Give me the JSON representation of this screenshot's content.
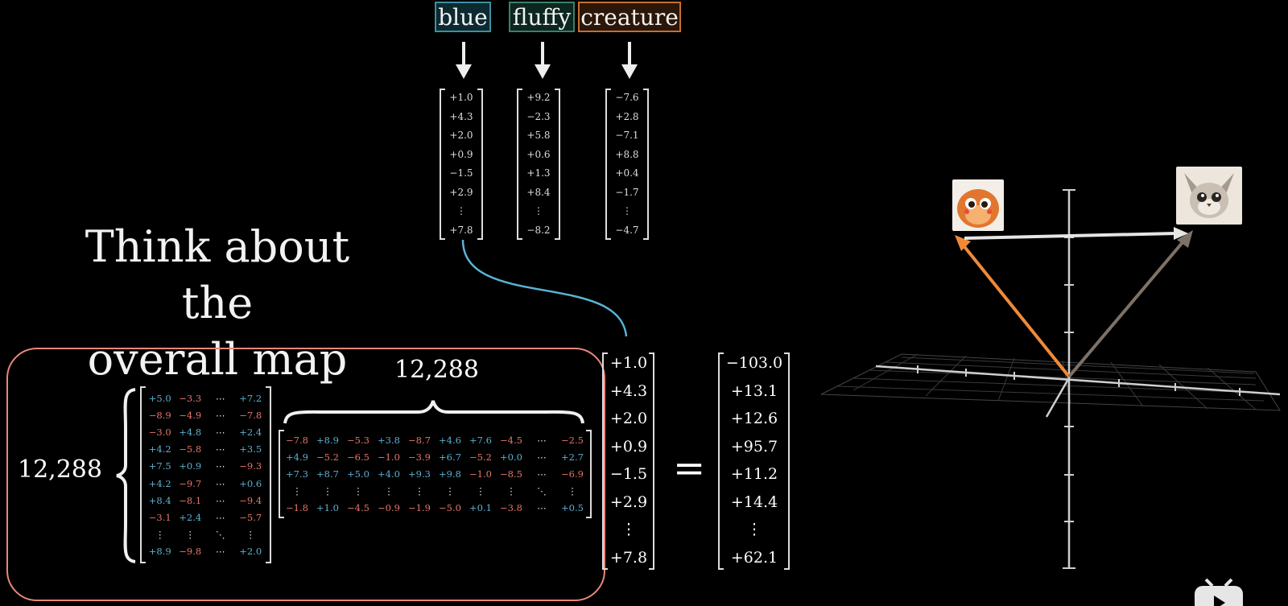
{
  "tokens": [
    {
      "word": "blue",
      "color": "#3e8fa2"
    },
    {
      "word": "fluffy",
      "color": "#3e7f68"
    },
    {
      "word": "creature",
      "color": "#c46f33"
    }
  ],
  "embeddings": {
    "blue": [
      "+1.0",
      "+4.3",
      "+2.0",
      "+0.9",
      "−1.5",
      "+2.9",
      "⋮",
      "+7.8"
    ],
    "fluffy": [
      "+9.2",
      "−2.3",
      "+5.8",
      "+0.6",
      "+1.3",
      "+8.4",
      "⋮",
      "−8.2"
    ],
    "creature": [
      "−7.6",
      "+2.8",
      "−7.1",
      "+8.8",
      "+0.4",
      "−1.7",
      "⋮",
      "−4.7"
    ]
  },
  "title_line1": "Think about the",
  "title_line2": "overall map",
  "matrix_rows_label": "12,288",
  "matrix_cols_label": "12,288",
  "left_matrix": [
    [
      "+5.0",
      "−3.3",
      "⋯",
      "+7.2"
    ],
    [
      "−8.9",
      "−4.9",
      "⋯",
      "−7.8"
    ],
    [
      "−3.0",
      "+4.8",
      "⋯",
      "+2.4"
    ],
    [
      "+4.2",
      "−5.8",
      "⋯",
      "+3.5"
    ],
    [
      "+7.5",
      "+0.9",
      "⋯",
      "−9.3"
    ],
    [
      "+4.2",
      "−9.7",
      "⋯",
      "+0.6"
    ],
    [
      "+8.4",
      "−8.1",
      "⋯",
      "−9.4"
    ],
    [
      "−3.1",
      "+2.4",
      "⋯",
      "−5.7"
    ],
    [
      "⋮",
      "⋮",
      "⋱",
      "⋮"
    ],
    [
      "+8.9",
      "−9.8",
      "⋯",
      "+2.0"
    ]
  ],
  "right_matrix": [
    [
      "−7.8",
      "+8.9",
      "−5.3",
      "+3.8",
      "−8.7",
      "+4.6",
      "+7.6",
      "−4.5",
      "⋯",
      "−2.5"
    ],
    [
      "+4.9",
      "−5.2",
      "−6.5",
      "−1.0",
      "−3.9",
      "+6.7",
      "−5.2",
      "+0.0",
      "⋯",
      "+2.7"
    ],
    [
      "+7.3",
      "+8.7",
      "+5.0",
      "+4.0",
      "+9.3",
      "+9.8",
      "−1.0",
      "−8.5",
      "⋯",
      "−6.9"
    ],
    [
      "⋮",
      "⋮",
      "⋮",
      "⋮",
      "⋮",
      "⋮",
      "⋮",
      "⋮",
      "⋱",
      "⋮"
    ],
    [
      "−1.8",
      "+1.0",
      "−4.5",
      "−0.9",
      "−1.9",
      "−5.0",
      "+0.1",
      "−3.8",
      "⋯",
      "+0.5"
    ]
  ],
  "input_vector": [
    "+1.0",
    "+4.3",
    "+2.0",
    "+0.9",
    "−1.5",
    "+2.9",
    "⋮",
    "+7.8"
  ],
  "equals_sign": "=",
  "output_vector": [
    "−103.0",
    "+13.1",
    "+12.6",
    "+95.7",
    "+11.2",
    "+14.4",
    "⋮",
    "+62.1"
  ],
  "colors": {
    "positive": "#5fb0cf",
    "negative": "#e5766a",
    "frame": "#e8877b",
    "connector": "#5ab4d6",
    "arrow_orange": "#ef8a3a",
    "arrow_gray": "#7d7268",
    "arrow_white": "#e6e6e6"
  },
  "scene_images": [
    "round-orange-creature",
    "fluffy-gray-creature"
  ]
}
